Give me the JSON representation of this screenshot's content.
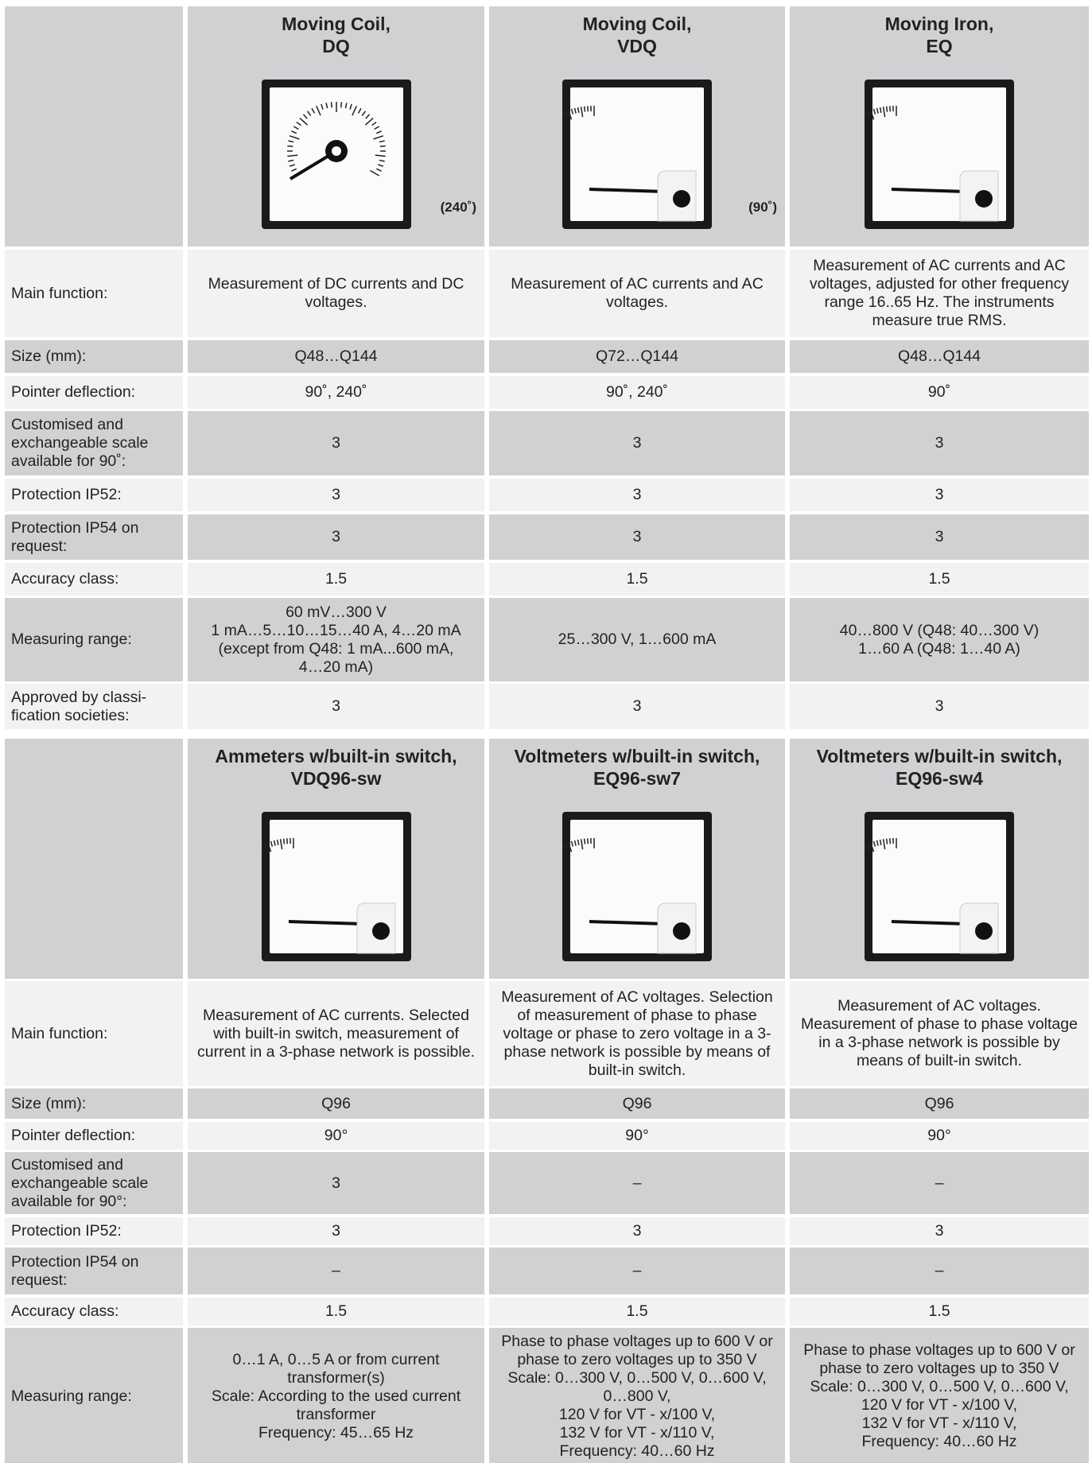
{
  "tables": [
    {
      "columns": [
        {
          "title": "Moving Coil,\nDQ",
          "note": "(240˚)"
        },
        {
          "title": "Moving Coil,\nVDQ",
          "note": "(90˚)"
        },
        {
          "title": "Moving Iron,\nEQ"
        }
      ],
      "rows": [
        {
          "label": "Main function:",
          "cells": [
            "Measurement of DC currents and DC voltages.",
            "Measurement of AC currents and AC voltages.",
            "Measurement of AC currents and AC voltages, adjusted for other frequency range 16..65 Hz. The instruments measure true RMS."
          ]
        },
        {
          "label": "Size (mm):",
          "cells": [
            "Q48…Q144",
            "Q72…Q144",
            "Q48…Q144"
          ]
        },
        {
          "label": "Pointer deflection:",
          "cells": [
            "90˚, 240˚",
            "90˚, 240˚",
            "90˚"
          ]
        },
        {
          "label": "Customised and exchangeable scale available for 90˚:",
          "cells": [
            "3",
            "3",
            "3"
          ]
        },
        {
          "label": "Protection IP52:",
          "cells": [
            "3",
            "3",
            "3"
          ]
        },
        {
          "label": "Protection IP54 on request:",
          "cells": [
            "3",
            "3",
            "3"
          ]
        },
        {
          "label": "Accuracy class:",
          "cells": [
            "1.5",
            "1.5",
            "1.5"
          ]
        },
        {
          "label": "Measuring range:",
          "cells": [
            "60 mV…300 V\n1 mA…5…10…15…40 A, 4…20 mA\n(except from Q48: 1 mA...600 mA,\n4…20 mA)",
            "25…300 V, 1…600 mA",
            "40…800 V (Q48: 40…300 V)\n1…60 A (Q48: 1…40 A)"
          ]
        },
        {
          "label": "Approved by classi-\nfication societies:",
          "cells": [
            "3",
            "3",
            "3"
          ]
        }
      ]
    },
    {
      "columns": [
        {
          "title": "Ammeters w/built-in switch,\nVDQ96-sw"
        },
        {
          "title": "Voltmeters w/built-in switch,\nEQ96-sw7"
        },
        {
          "title": "Voltmeters w/built-in switch,\nEQ96-sw4"
        }
      ],
      "rows": [
        {
          "label": "Main function:",
          "cells": [
            "Measurement of AC currents. Selected with built-in switch, measurement of current in a 3-phase network is possible.",
            "Measurement of AC voltages. Selection of measurement of phase to phase voltage or phase to zero voltage in a 3-phase network is possible by means of built-in switch.",
            "Measurement of AC voltages. Measurement of phase to phase voltage in a 3-phase network is possible by means of built-in switch."
          ]
        },
        {
          "label": "Size (mm):",
          "cells": [
            "Q96",
            "Q96",
            "Q96"
          ]
        },
        {
          "label": "Pointer deflection:",
          "cells": [
            "90°",
            "90°",
            "90°"
          ]
        },
        {
          "label": "Customised and exchangeable scale available for 90°:",
          "cells": [
            "3",
            "–",
            "–"
          ]
        },
        {
          "label": "Protection IP52:",
          "cells": [
            "3",
            "3",
            "3"
          ]
        },
        {
          "label": "Protection IP54 on request:",
          "cells": [
            "–",
            "–",
            "–"
          ]
        },
        {
          "label": "Accuracy class:",
          "cells": [
            "1.5",
            "1.5",
            "1.5"
          ]
        },
        {
          "label": "Measuring range:",
          "cells": [
            "0…1 A, 0…5 A or from current transformer(s)\nScale: According to the used current transformer\nFrequency: 45…65 Hz",
            "Phase to phase voltages up to 600 V or phase to zero voltages up to 350 V\nScale: 0…300 V, 0…500 V, 0…600 V, 0…800 V,\n120 V for VT - x/100 V,\n132 V for VT - x/110 V,\nFrequency: 40…60 Hz",
            "Phase to phase voltages up to 600 V or phase to zero voltages up to 350 V\nScale: 0…300 V, 0…500 V, 0…600 V,\n120 V for VT - x/100 V,\n132 V for VT - x/110 V,\nFrequency: 40…60 Hz"
          ]
        }
      ]
    }
  ]
}
